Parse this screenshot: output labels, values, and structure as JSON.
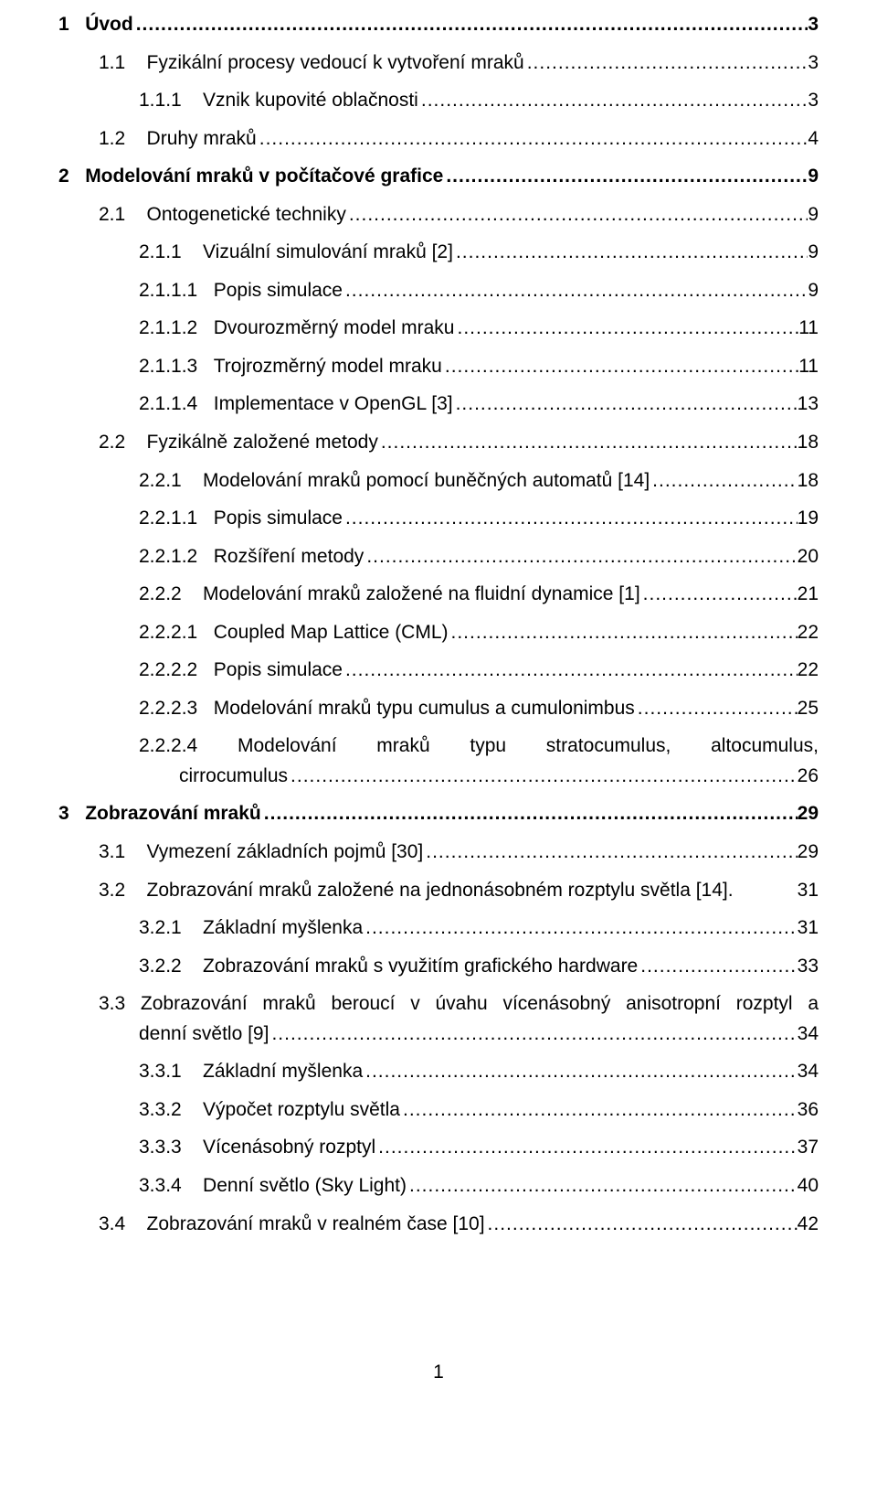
{
  "footer_page": "1",
  "leader_dots": "........................................................................................................................................................................................................................................................",
  "entries": [
    {
      "indent": 0,
      "bold": true,
      "num": "1",
      "sep": "   ",
      "title": "Úvod",
      "page": "3"
    },
    {
      "indent": 1,
      "bold": false,
      "num": "1.1",
      "sep": "    ",
      "title": "Fyzikální procesy vedoucí k vytvoření mraků",
      "page": "3"
    },
    {
      "indent": 2,
      "bold": false,
      "num": "1.1.1",
      "sep": "    ",
      "title": "Vznik kupovité oblačnosti",
      "page": "3"
    },
    {
      "indent": 1,
      "bold": false,
      "num": "1.2",
      "sep": "    ",
      "title": "Druhy mraků",
      "page": "4"
    },
    {
      "indent": 0,
      "bold": true,
      "num": "2",
      "sep": "   ",
      "title": "Modelování mraků v počítačové grafice",
      "page": "9"
    },
    {
      "indent": 1,
      "bold": false,
      "num": "2.1",
      "sep": "    ",
      "title": "Ontogenetické techniky",
      "page": "9"
    },
    {
      "indent": 2,
      "bold": false,
      "num": "2.1.1",
      "sep": "    ",
      "title": "Vizuální simulování mraků [2]",
      "page": "9"
    },
    {
      "indent": 3,
      "bold": false,
      "num": "2.1.1.1",
      "sep": "   ",
      "title": "Popis simulace",
      "page": "9"
    },
    {
      "indent": 3,
      "bold": false,
      "num": "2.1.1.2",
      "sep": "   ",
      "title": "Dvourozměrný model mraku",
      "page": "11"
    },
    {
      "indent": 3,
      "bold": false,
      "num": "2.1.1.3",
      "sep": "   ",
      "title": "Trojrozměrný model mraku",
      "page": "11"
    },
    {
      "indent": 3,
      "bold": false,
      "num": "2.1.1.4",
      "sep": "   ",
      "title": "Implementace v OpenGL [3]",
      "page": "13"
    },
    {
      "indent": 1,
      "bold": false,
      "num": "2.2",
      "sep": "    ",
      "title": "Fyzikálně založené metody",
      "page": "18"
    },
    {
      "indent": 2,
      "bold": false,
      "num": "2.2.1",
      "sep": "    ",
      "title": "Modelování mraků pomocí buněčných automatů [14]",
      "page": "18"
    },
    {
      "indent": 3,
      "bold": false,
      "num": "2.2.1.1",
      "sep": "   ",
      "title": "Popis simulace",
      "page": "19"
    },
    {
      "indent": 3,
      "bold": false,
      "num": "2.2.1.2",
      "sep": "   ",
      "title": "Rozšíření metody",
      "page": "20"
    },
    {
      "indent": 2,
      "bold": false,
      "num": "2.2.2",
      "sep": "    ",
      "title": "Modelování mraků založené na fluidní dynamice [1]",
      "page": "21"
    },
    {
      "indent": 3,
      "bold": false,
      "num": "2.2.2.1",
      "sep": "   ",
      "title": "Coupled Map Lattice (CML)",
      "page": "22"
    },
    {
      "indent": 3,
      "bold": false,
      "num": "2.2.2.2",
      "sep": "   ",
      "title": "Popis simulace",
      "page": "22"
    },
    {
      "indent": 3,
      "bold": false,
      "num": "2.2.2.3",
      "sep": "   ",
      "title": "Modelování mraků typu cumulus a cumulonimbus",
      "page": "25"
    },
    {
      "indent": 3,
      "bold": false,
      "special": "justify2",
      "line1": "2.2.2.4 Modelování   mraků   typu   stratocumulus,   altocumulus,",
      "line2_title": "cirrocumulus",
      "line2_indent_extra": 44,
      "page": "26"
    },
    {
      "indent": 0,
      "bold": true,
      "num": "3",
      "sep": "   ",
      "title": "Zobrazování mraků",
      "page": "29"
    },
    {
      "indent": 1,
      "bold": false,
      "num": "3.1",
      "sep": "    ",
      "title": "Vymezení základních pojmů [30]",
      "page": "29"
    },
    {
      "indent": 1,
      "bold": false,
      "num": "3.2",
      "sep": "    ",
      "title": "Zobrazování mraků založené na jednonásobném rozptylu světla [14].",
      "page": "31",
      "no_leader": true
    },
    {
      "indent": 2,
      "bold": false,
      "num": "3.2.1",
      "sep": "    ",
      "title": "Základní myšlenka",
      "page": "31"
    },
    {
      "indent": 2,
      "bold": false,
      "num": "3.2.2",
      "sep": "    ",
      "title": "Zobrazování mraků s využitím grafického hardware",
      "page": "33"
    },
    {
      "indent": 1,
      "bold": false,
      "special": "justify2b",
      "line1": "3.3    Zobrazování mraků beroucí v úvahu vícenásobný anisotropní rozptyl a",
      "line2_title": "denní světlo [9]",
      "line2_indent_extra": 44,
      "page": "34"
    },
    {
      "indent": 2,
      "bold": false,
      "num": "3.3.1",
      "sep": "    ",
      "title": "Základní myšlenka",
      "page": "34"
    },
    {
      "indent": 2,
      "bold": false,
      "num": "3.3.2",
      "sep": "    ",
      "title": "Výpočet rozptylu světla",
      "page": "36"
    },
    {
      "indent": 2,
      "bold": false,
      "num": "3.3.3",
      "sep": "    ",
      "title": "Vícenásobný rozptyl",
      "page": "37"
    },
    {
      "indent": 2,
      "bold": false,
      "num": "3.3.4",
      "sep": "    ",
      "title": "Denní světlo (Sky Light)",
      "page": "40"
    },
    {
      "indent": 1,
      "bold": false,
      "num": "3.4",
      "sep": "    ",
      "title": "Zobrazování mraků v realném čase [10]",
      "page": "42"
    }
  ]
}
